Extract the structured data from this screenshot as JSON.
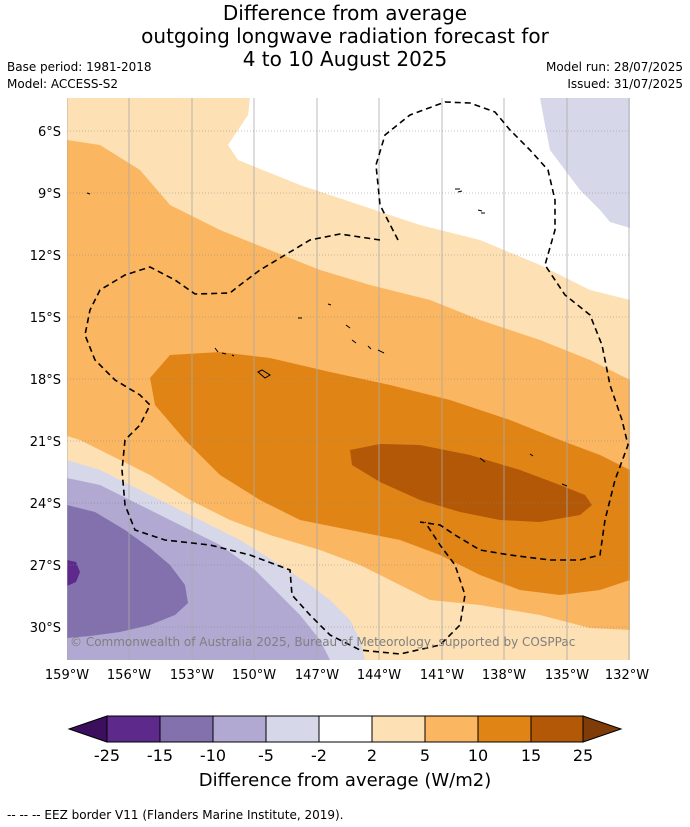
{
  "title_lines": [
    "Difference from average",
    "outgoing longwave radiation forecast for",
    "4 to 10 August 2025"
  ],
  "meta": {
    "base_period": "Base period: 1981-2018",
    "model": "Model: ACCESS-S2",
    "model_run": "Model run: 28/07/2025",
    "issued": "Issued: 31/07/2025"
  },
  "map": {
    "copyright": "© Commonwealth of Australia 2025, Bureau of Meteorology, supported by COSPPac",
    "lat_labels": [
      "6°S",
      "9°S",
      "12°S",
      "15°S",
      "18°S",
      "21°S",
      "24°S",
      "27°S",
      "30°S"
    ],
    "lon_labels": [
      "159°W",
      "156°W",
      "153°W",
      "150°W",
      "147°W",
      "144°W",
      "141°W",
      "138°W",
      "135°W",
      "132°W"
    ],
    "colors": {
      "neg25": "#3b0f5e",
      "neg15_25": "#5d2a8c",
      "neg10_15": "#8271ad",
      "neg5_10": "#b1a9d2",
      "neg2_5": "#d7d7ea",
      "neutral": "#ffffff",
      "pos2_5": "#fde0b3",
      "pos5_10": "#fbb661",
      "pos10_15": "#e08416",
      "pos15_25": "#b35806",
      "pos25": "#7f3b08"
    }
  },
  "colorbar": {
    "ticks": [
      "-25",
      "-15",
      "-10",
      "-5",
      "-2",
      "2",
      "5",
      "10",
      "15",
      "25"
    ],
    "label": "Difference from average (W/m2)"
  },
  "footer": "-- -- -- EEZ border V11 (Flanders Marine Institute, 2019)."
}
